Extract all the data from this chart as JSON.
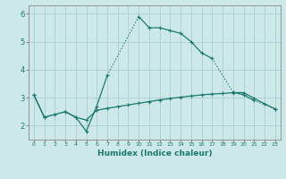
{
  "xlabel": "Humidex (Indice chaleur)",
  "x": [
    0,
    1,
    2,
    3,
    4,
    5,
    6,
    7,
    8,
    9,
    10,
    11,
    12,
    13,
    14,
    15,
    16,
    17,
    18,
    19,
    20,
    21,
    22,
    23
  ],
  "line1": [
    3.1,
    2.3,
    null,
    2.5,
    2.3,
    1.8,
    2.7,
    3.8,
    null,
    null,
    5.9,
    5.5,
    5.5,
    5.4,
    5.3,
    5.0,
    4.6,
    4.4,
    null,
    3.2,
    3.1,
    2.9,
    null,
    2.6
  ],
  "line2": [
    3.1,
    2.3,
    2.4,
    2.5,
    2.3,
    2.2,
    2.55,
    2.62,
    2.68,
    2.74,
    2.8,
    2.86,
    2.92,
    2.97,
    3.02,
    3.06,
    3.1,
    3.13,
    3.15,
    3.18,
    3.18,
    2.98,
    2.78,
    2.6
  ],
  "bg_color": "#cde8e8",
  "grid_color": "#aacfcf",
  "line_color": "#1a7a6e",
  "ylim": [
    1.5,
    6.3
  ],
  "xlim": [
    -0.5,
    23.5
  ],
  "yticks": [
    2,
    3,
    4,
    5,
    6
  ]
}
